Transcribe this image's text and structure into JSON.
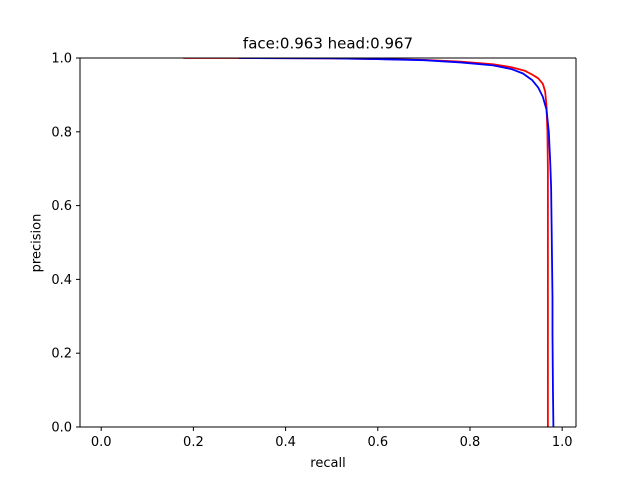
{
  "chart_data": {
    "type": "line",
    "title": "face:0.963  head:0.967",
    "xlabel": "recall",
    "ylabel": "precision",
    "xlim": [
      -0.046,
      1.03
    ],
    "ylim": [
      0.0,
      1.0
    ],
    "xticks": [
      0.0,
      0.2,
      0.4,
      0.6,
      0.8,
      1.0
    ],
    "xtick_labels": [
      "0.0",
      "0.2",
      "0.4",
      "0.6",
      "0.8",
      "1.0"
    ],
    "yticks": [
      0.0,
      0.2,
      0.4,
      0.6,
      0.8,
      1.0
    ],
    "ytick_labels": [
      "0.0",
      "0.2",
      "0.4",
      "0.6",
      "0.8",
      "1.0"
    ],
    "grid": false,
    "legend": false,
    "series": [
      {
        "color": "#ff0000",
        "x": [
          0.18,
          0.3,
          0.5,
          0.6,
          0.7,
          0.78,
          0.85,
          0.89,
          0.92,
          0.935,
          0.948,
          0.958,
          0.963,
          0.966,
          0.968,
          0.969,
          0.969,
          0.969,
          0.969,
          0.969,
          0.969
        ],
        "y": [
          1.0,
          1.0,
          0.999,
          0.997,
          0.995,
          0.99,
          0.983,
          0.975,
          0.965,
          0.955,
          0.945,
          0.93,
          0.91,
          0.87,
          0.8,
          0.7,
          0.5,
          0.3,
          0.15,
          0.05,
          0.0
        ]
      },
      {
        "color": "#0000ff",
        "x": [
          0.3,
          0.5,
          0.6,
          0.7,
          0.78,
          0.85,
          0.89,
          0.915,
          0.935,
          0.948,
          0.958,
          0.966,
          0.971,
          0.974,
          0.976,
          0.977,
          0.978,
          0.979,
          0.979,
          0.98,
          0.981
        ],
        "y": [
          1.0,
          0.999,
          0.997,
          0.994,
          0.988,
          0.98,
          0.97,
          0.958,
          0.94,
          0.92,
          0.895,
          0.86,
          0.8,
          0.72,
          0.65,
          0.55,
          0.45,
          0.35,
          0.25,
          0.1,
          0.0
        ]
      }
    ]
  }
}
